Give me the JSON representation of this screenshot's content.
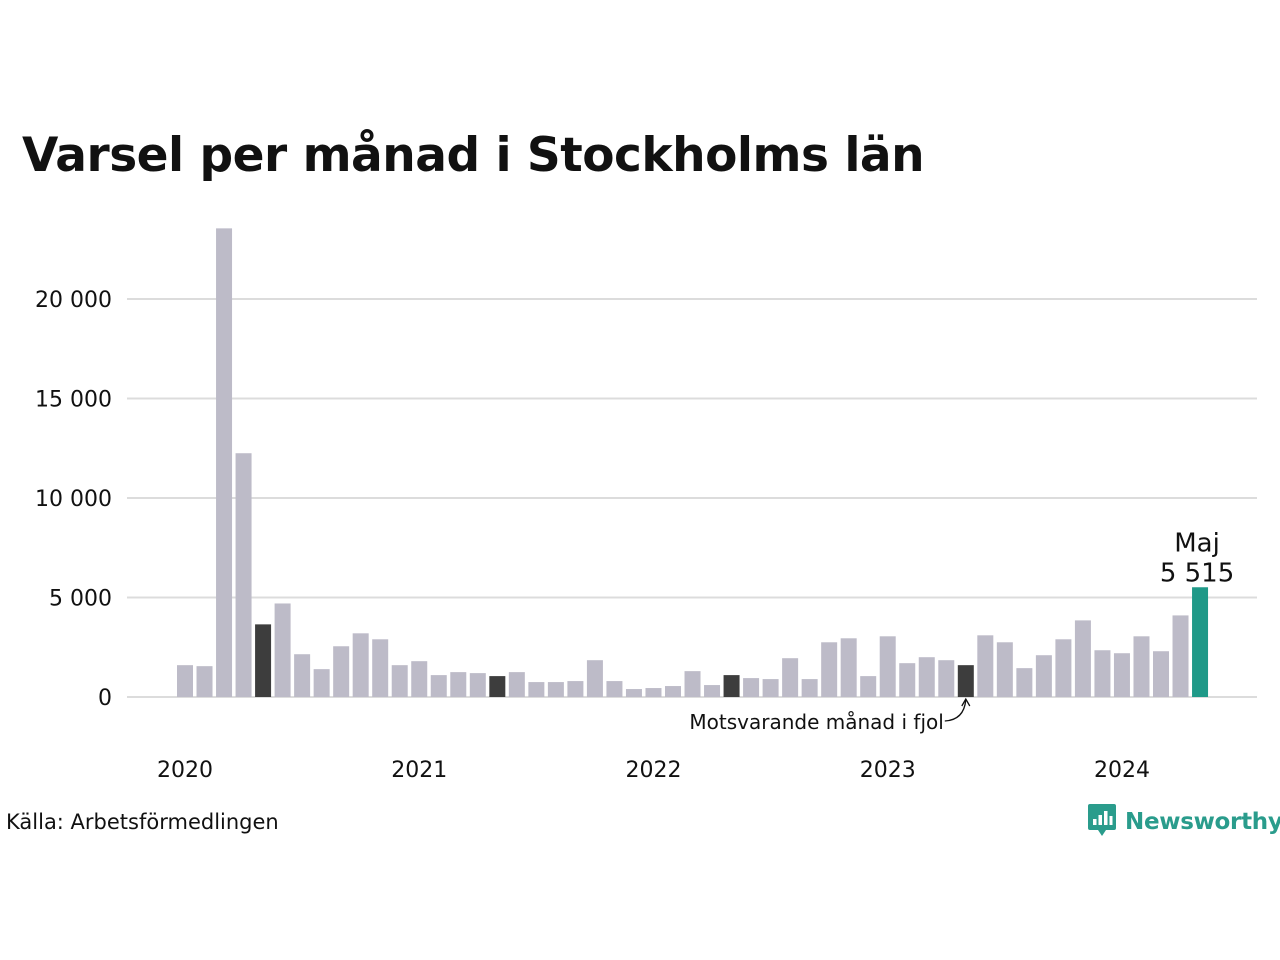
{
  "chart_data": {
    "type": "bar",
    "title": "Varsel per månad i Stockholms län",
    "xlabel": "",
    "ylabel": "",
    "ylim": [
      0,
      24000
    ],
    "yticks": [
      0,
      5000,
      10000,
      15000,
      20000
    ],
    "ytick_labels": [
      "0",
      "5 000",
      "10 000",
      "15 000",
      "20 000"
    ],
    "grid": true,
    "x_start": "2020-01",
    "xtick_labels": [
      "2020",
      "2021",
      "2022",
      "2023",
      "2024"
    ],
    "xtick_months": [
      "2020-01",
      "2021-01",
      "2022-01",
      "2023-01",
      "2024-01"
    ],
    "values": [
      1600,
      1550,
      23550,
      12250,
      3650,
      4700,
      2150,
      1400,
      2550,
      3200,
      2900,
      1600,
      1800,
      1100,
      1250,
      1200,
      1050,
      1250,
      750,
      750,
      800,
      1850,
      800,
      400,
      450,
      550,
      1300,
      600,
      1100,
      950,
      900,
      1950,
      900,
      2750,
      2950,
      1050,
      3050,
      1700,
      2000,
      1850,
      1600,
      3100,
      2750,
      1450,
      2100,
      2900,
      3850,
      2350,
      2200,
      3050,
      2300,
      4100,
      5515
    ],
    "highlight": {
      "label": "Maj",
      "value_label": "5 515"
    },
    "annotation": {
      "text": "Motsvarande månad i fjol"
    },
    "colors": {
      "default": "#bdbbc8",
      "same_month": "#3d3d3d",
      "current": "#1f9988",
      "grid": "#dcdcdc"
    }
  },
  "footer": {
    "source": "Källa: Arbetsförmedlingen",
    "brand": "Newsworthy",
    "brand_icon": "bar-chart-badge-icon"
  }
}
